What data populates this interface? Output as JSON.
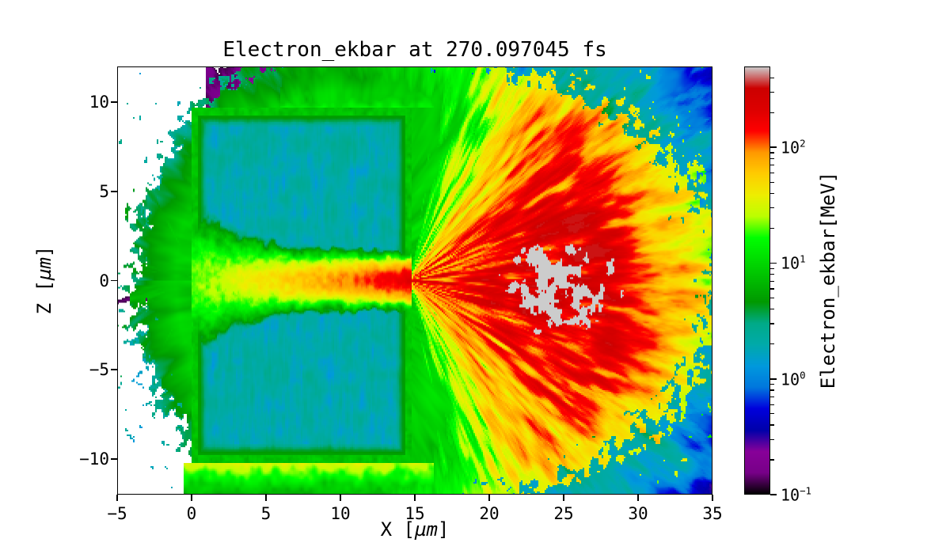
{
  "figure": {
    "background": "#ffffff"
  },
  "chart_data": {
    "type": "heatmap",
    "title": "Electron_ekbar at 270.097045 fs",
    "time_fs": 270.097045,
    "xlabel": {
      "pre": "X [",
      "unit": "µm",
      "post": "]"
    },
    "ylabel": {
      "pre": "Z [",
      "unit": "µm",
      "post": "]"
    },
    "xlim": [
      -5,
      35
    ],
    "zlim": [
      -12,
      12
    ],
    "xticks": [
      {
        "v": -5,
        "label": "−5"
      },
      {
        "v": 0,
        "label": "0"
      },
      {
        "v": 5,
        "label": "5"
      },
      {
        "v": 10,
        "label": "10"
      },
      {
        "v": 15,
        "label": "15"
      },
      {
        "v": 20,
        "label": "20"
      },
      {
        "v": 25,
        "label": "25"
      },
      {
        "v": 30,
        "label": "30"
      },
      {
        "v": 35,
        "label": "35"
      }
    ],
    "zticks": [
      {
        "v": -10,
        "label": "−10"
      },
      {
        "v": -5,
        "label": "−5"
      },
      {
        "v": 0,
        "label": "0"
      },
      {
        "v": 5,
        "label": "5"
      },
      {
        "v": 10,
        "label": "10"
      }
    ],
    "colorbar": {
      "label": "Electron_ekbar[MeV]",
      "scale": "log",
      "colormap": "nipy_spectral",
      "vmin": 0.1,
      "vmax": 500,
      "major_ticks": [
        {
          "v": 100,
          "exp": "2"
        },
        {
          "v": 10,
          "exp": "1"
        },
        {
          "v": 1,
          "exp": "0"
        },
        {
          "v": 0.1,
          "exp": "−1"
        }
      ]
    },
    "features": {
      "target": {
        "x0": 0,
        "x1": 14.8,
        "z0": -10.2,
        "z1": 9.7,
        "interior_mev": 1.8,
        "rim_mev": 7.5,
        "rim_width": 0.45
      },
      "channel": {
        "entr_halfwidth": 3.1,
        "exit_halfwidth": 0.85,
        "taper_scale": 3.5,
        "mev_entry": 20,
        "mev_exit": 200
      },
      "fan": {
        "apex_x": 14.5,
        "spread_rad": 0.8,
        "mev_core": 230,
        "core_radius": 13,
        "fade_scale": 4,
        "mev_cap": 340
      },
      "hot_core": {
        "cx": 24.5,
        "cz": -0.3,
        "rx": 4.8,
        "rz": 3.0,
        "mev": 520
      },
      "orange_halo": {
        "mev": 50,
        "radius": 15.5,
        "width": 5.5,
        "spread_rad": 1.45
      },
      "edge_glow": {
        "bottom_mev": 35,
        "top_mev": 14,
        "scale": 1.1
      },
      "background": {
        "mev": 8,
        "cx": 10,
        "rx_left": 13,
        "rx_right": 24,
        "rz": 12.5,
        "fringe_start": 0.92
      },
      "left_plume": {
        "mev": 7.5,
        "decay_scale": 9
      },
      "no_data_below": 0.12
    }
  }
}
